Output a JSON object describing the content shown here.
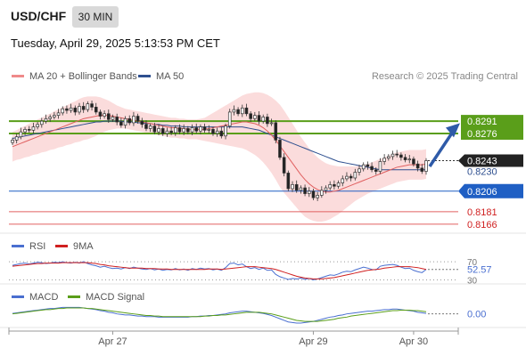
{
  "header": {
    "symbol": "USD/CHF",
    "interval": "30 MIN",
    "datetime": "Tuesday, April 29, 2025 5:13:53 PM CET",
    "research": "Research © 2025 Trading Central"
  },
  "legend": {
    "ma20": "MA 20 + Bollinger Bands",
    "ma50": "MA 50",
    "rsi": "RSI",
    "rsi9": "9MA",
    "macd": "MACD",
    "macd_signal": "MACD Signal"
  },
  "colors": {
    "ma20": "#e06060",
    "band": "#fbdcdc",
    "ma50": "#2e4f8f",
    "resistance": "#5a9e1a",
    "support": "#1f5fc4",
    "support_line": "#e06060",
    "last_price": "#222222",
    "rsi": "#4a6fd0",
    "rsi9": "#d02020",
    "macd": "#4a6fd0",
    "macd_signal": "#5a9e1a"
  },
  "chart_data": [
    {
      "type": "candlestick",
      "ylim": [
        0.8155,
        0.833
      ],
      "price_levels": [
        {
          "label": "0.8291",
          "value": 0.8291,
          "kind": "resistance"
        },
        {
          "label": "0.8276",
          "value": 0.8276,
          "kind": "resistance"
        },
        {
          "label": "0.8243",
          "value": 0.8243,
          "kind": "last"
        },
        {
          "label": "0.8230",
          "value": 0.823,
          "kind": "pivot"
        },
        {
          "label": "0.8206",
          "value": 0.8206,
          "kind": "support"
        },
        {
          "label": "0.8181",
          "value": 0.8181,
          "kind": "support2"
        },
        {
          "label": "0.8166",
          "value": 0.8166,
          "kind": "support2"
        }
      ],
      "closes": [
        0.8268,
        0.8272,
        0.8278,
        0.8281,
        0.828,
        0.8284,
        0.8287,
        0.8291,
        0.8294,
        0.8296,
        0.8298,
        0.8301,
        0.8306,
        0.8304,
        0.8307,
        0.8302,
        0.8309,
        0.8305,
        0.8312,
        0.8308,
        0.8302,
        0.8297,
        0.83,
        0.8293,
        0.8296,
        0.829,
        0.8286,
        0.8294,
        0.8289,
        0.8297,
        0.8291,
        0.8287,
        0.8282,
        0.8285,
        0.8278,
        0.8282,
        0.8276,
        0.8279,
        0.8277,
        0.8283,
        0.8278,
        0.8282,
        0.8278,
        0.8283,
        0.8279,
        0.8284,
        0.828,
        0.8281,
        0.8276,
        0.8279,
        0.8273,
        0.8285,
        0.8302,
        0.8305,
        0.83,
        0.8307,
        0.83,
        0.8294,
        0.8298,
        0.8291,
        0.8296,
        0.8288,
        0.8289,
        0.8268,
        0.8247,
        0.8228,
        0.8209,
        0.8214,
        0.8207,
        0.821,
        0.8203,
        0.8206,
        0.8198,
        0.8201,
        0.8207,
        0.821,
        0.8214,
        0.8212,
        0.8216,
        0.8221,
        0.8224,
        0.8222,
        0.8229,
        0.8233,
        0.8238,
        0.8236,
        0.8232,
        0.823,
        0.8242,
        0.8246,
        0.8248,
        0.8251,
        0.825,
        0.8247,
        0.8244,
        0.8245,
        0.8239,
        0.8234,
        0.823,
        0.8243
      ],
      "ma20": [
        0.826,
        0.8262,
        0.8264,
        0.8266,
        0.8268,
        0.827,
        0.8272,
        0.8274,
        0.8276,
        0.8278,
        0.828,
        0.8282,
        0.8284,
        0.8286,
        0.8288,
        0.829,
        0.8292,
        0.8294,
        0.8295,
        0.8296,
        0.8297,
        0.8298,
        0.8298,
        0.8298,
        0.8297,
        0.8296,
        0.8295,
        0.8294,
        0.8293,
        0.8292,
        0.8291,
        0.829,
        0.8289,
        0.8288,
        0.8287,
        0.8286,
        0.8285,
        0.8284,
        0.8283,
        0.8283,
        0.8282,
        0.8282,
        0.8281,
        0.8281,
        0.8281,
        0.8281,
        0.8281,
        0.8282,
        0.8283,
        0.8284,
        0.8285,
        0.8286,
        0.8287,
        0.8288,
        0.8289,
        0.829,
        0.829,
        0.8289,
        0.8288,
        0.8286,
        0.8283,
        0.8279,
        0.8274,
        0.8268,
        0.8261,
        0.8254,
        0.8247,
        0.824,
        0.8233,
        0.8226,
        0.822,
        0.8215,
        0.8211,
        0.8208,
        0.8206,
        0.8205,
        0.8205,
        0.8206,
        0.8207,
        0.8209,
        0.8211,
        0.8213,
        0.8215,
        0.8217,
        0.8219,
        0.8221,
        0.8223,
        0.8225,
        0.8227,
        0.8229,
        0.8231,
        0.8233,
        0.8235,
        0.8236,
        0.8237,
        0.8238,
        0.8238,
        0.8238,
        0.8238,
        0.8239
      ],
      "ma50": [
        0.827,
        0.8271,
        0.8272,
        0.8273,
        0.8274,
        0.8275,
        0.8276,
        0.8277,
        0.8278,
        0.8279,
        0.828,
        0.8281,
        0.8282,
        0.8283,
        0.8284,
        0.8285,
        0.8286,
        0.8287,
        0.8288,
        0.8289,
        0.829,
        0.829,
        0.8291,
        0.8291,
        0.8291,
        0.8291,
        0.8291,
        0.829,
        0.829,
        0.829,
        0.8289,
        0.8289,
        0.8288,
        0.8288,
        0.8287,
        0.8287,
        0.8286,
        0.8286,
        0.8285,
        0.8285,
        0.8285,
        0.8284,
        0.8284,
        0.8284,
        0.8284,
        0.8284,
        0.8284,
        0.8284,
        0.8284,
        0.8284,
        0.8284,
        0.8284,
        0.8284,
        0.8284,
        0.8284,
        0.8284,
        0.8283,
        0.8282,
        0.8281,
        0.828,
        0.8278,
        0.8276,
        0.8274,
        0.8272,
        0.827,
        0.8268,
        0.8266,
        0.8264,
        0.8262,
        0.826,
        0.8258,
        0.8256,
        0.8254,
        0.8252,
        0.825,
        0.8248,
        0.8246,
        0.8244,
        0.8242,
        0.8241,
        0.824,
        0.8239,
        0.8238,
        0.8237,
        0.8236,
        0.8235,
        0.8234,
        0.8233,
        0.8232,
        0.8232,
        0.8232,
        0.8232,
        0.8232,
        0.8232,
        0.8232,
        0.8232,
        0.8232,
        0.8232,
        0.8232,
        0.8232
      ],
      "band_width": [
        0.0018,
        0.0018,
        0.0019,
        0.0019,
        0.002,
        0.002,
        0.0021,
        0.0021,
        0.0022,
        0.0022,
        0.0023,
        0.0023,
        0.0024,
        0.0024,
        0.0025,
        0.0025,
        0.0026,
        0.0026,
        0.0026,
        0.0025,
        0.0024,
        0.0022,
        0.002,
        0.0018,
        0.0016,
        0.0014,
        0.0013,
        0.0012,
        0.0012,
        0.0012,
        0.0012,
        0.0012,
        0.0012,
        0.0012,
        0.0012,
        0.0012,
        0.0012,
        0.0012,
        0.0012,
        0.0012,
        0.0012,
        0.0012,
        0.0012,
        0.0012,
        0.0012,
        0.0013,
        0.0014,
        0.0016,
        0.0018,
        0.002,
        0.0022,
        0.0024,
        0.0026,
        0.0028,
        0.003,
        0.0032,
        0.0034,
        0.0036,
        0.0038,
        0.004,
        0.0042,
        0.0044,
        0.0046,
        0.0048,
        0.005,
        0.005,
        0.0049,
        0.0048,
        0.0047,
        0.0046,
        0.0045,
        0.0043,
        0.0041,
        0.0039,
        0.0037,
        0.0035,
        0.0033,
        0.0031,
        0.0029,
        0.0027,
        0.0025,
        0.0023,
        0.0021,
        0.002,
        0.0019,
        0.0018,
        0.0018,
        0.0018,
        0.0018,
        0.0018,
        0.0018,
        0.0018,
        0.0018,
        0.0018,
        0.0018,
        0.0018,
        0.0018,
        0.0018,
        0.0018,
        0.0018
      ],
      "projection": {
        "from": 0.8236,
        "to": 0.8282
      }
    },
    {
      "type": "line",
      "name": "RSI",
      "ylim": [
        25,
        78
      ],
      "levels": [
        {
          "label": "70",
          "value": 70
        },
        {
          "label": "30",
          "value": 30
        }
      ],
      "current_label": "52.57",
      "rsi": [
        62,
        64,
        66,
        67,
        65,
        67,
        69,
        68,
        66,
        67,
        69,
        68,
        70,
        68,
        67,
        69,
        67,
        70,
        66,
        63,
        61,
        58,
        60,
        57,
        55,
        56,
        54,
        57,
        55,
        58,
        56,
        54,
        53,
        55,
        52,
        54,
        51,
        53,
        52,
        55,
        52,
        54,
        51,
        55,
        53,
        56,
        54,
        55,
        52,
        54,
        51,
        57,
        66,
        67,
        63,
        65,
        59,
        55,
        57,
        53,
        56,
        51,
        52,
        42,
        37,
        34,
        31,
        33,
        32,
        34,
        31,
        33,
        30,
        32,
        35,
        38,
        41,
        40,
        43,
        47,
        49,
        48,
        52,
        55,
        58,
        56,
        53,
        52,
        60,
        62,
        63,
        64,
        62,
        58,
        55,
        56,
        51,
        48,
        46,
        53
      ],
      "ma9": [
        60,
        61,
        62,
        63,
        64,
        65,
        66,
        66,
        67,
        67,
        67,
        67,
        68,
        68,
        68,
        68,
        68,
        68,
        68,
        67,
        66,
        64,
        63,
        61,
        60,
        59,
        58,
        57,
        56,
        56,
        56,
        56,
        55,
        55,
        55,
        54,
        54,
        54,
        53,
        53,
        53,
        53,
        53,
        53,
        53,
        53,
        53,
        54,
        54,
        54,
        53,
        54,
        55,
        56,
        57,
        58,
        59,
        59,
        59,
        58,
        57,
        56,
        55,
        53,
        50,
        47,
        44,
        41,
        38,
        36,
        34,
        33,
        32,
        32,
        32,
        33,
        34,
        35,
        37,
        39,
        41,
        43,
        45,
        47,
        49,
        51,
        52,
        53,
        54,
        56,
        57,
        58,
        59,
        59,
        59,
        59,
        58,
        57,
        55,
        53
      ]
    },
    {
      "type": "line",
      "name": "MACD",
      "ylim": [
        -0.0022,
        0.0016
      ],
      "zero_label": "0.00",
      "macd": [
        0.0001,
        0.0002,
        0.0003,
        0.0004,
        0.0005,
        0.0006,
        0.0007,
        0.0008,
        0.0009,
        0.001,
        0.001,
        0.0011,
        0.0012,
        0.0012,
        0.0012,
        0.0012,
        0.0012,
        0.0011,
        0.001,
        0.0009,
        0.0008,
        0.0006,
        0.0005,
        0.0003,
        0.0002,
        0.0,
        -0.0001,
        -0.0002,
        -0.0002,
        -0.0003,
        -0.0004,
        -0.0004,
        -0.0005,
        -0.0005,
        -0.0005,
        -0.0006,
        -0.0006,
        -0.0006,
        -0.0006,
        -0.0006,
        -0.0006,
        -0.0006,
        -0.0006,
        -0.0005,
        -0.0005,
        -0.0004,
        -0.0004,
        -0.0003,
        -0.0003,
        -0.0002,
        -0.0001,
        0.0,
        0.0002,
        0.0003,
        0.0004,
        0.0005,
        0.0005,
        0.0004,
        0.0003,
        0.0002,
        0.0001,
        -0.0001,
        -0.0003,
        -0.0006,
        -0.0009,
        -0.0012,
        -0.0015,
        -0.0016,
        -0.0017,
        -0.0017,
        -0.0016,
        -0.0015,
        -0.0014,
        -0.0012,
        -0.001,
        -0.0008,
        -0.0006,
        -0.0005,
        -0.0003,
        -0.0002,
        0.0,
        0.0001,
        0.0002,
        0.0003,
        0.0004,
        0.0005,
        0.0005,
        0.0006,
        0.0007,
        0.0008,
        0.0008,
        0.0009,
        0.0009,
        0.0008,
        0.0007,
        0.0006,
        0.0005,
        0.0003,
        0.0002,
        0.0001
      ],
      "signal": [
        0.0,
        0.0001,
        0.0002,
        0.0003,
        0.0004,
        0.0005,
        0.0006,
        0.0007,
        0.0008,
        0.0008,
        0.0009,
        0.001,
        0.001,
        0.0011,
        0.0011,
        0.0011,
        0.0011,
        0.0011,
        0.001,
        0.001,
        0.0009,
        0.0008,
        0.0007,
        0.0006,
        0.0005,
        0.0004,
        0.0003,
        0.0002,
        0.0001,
        0.0,
        -0.0001,
        -0.0002,
        -0.0003,
        -0.0003,
        -0.0004,
        -0.0004,
        -0.0005,
        -0.0005,
        -0.0005,
        -0.0005,
        -0.0005,
        -0.0005,
        -0.0005,
        -0.0005,
        -0.0005,
        -0.0005,
        -0.0004,
        -0.0004,
        -0.0003,
        -0.0003,
        -0.0002,
        -0.0002,
        -0.0001,
        0.0,
        0.0001,
        0.0002,
        0.0003,
        0.0003,
        0.0003,
        0.0003,
        0.0002,
        0.0001,
        0.0,
        -0.0002,
        -0.0004,
        -0.0006,
        -0.0008,
        -0.001,
        -0.0012,
        -0.0013,
        -0.0014,
        -0.0014,
        -0.0014,
        -0.0014,
        -0.0013,
        -0.0012,
        -0.0011,
        -0.001,
        -0.0008,
        -0.0007,
        -0.0006,
        -0.0004,
        -0.0003,
        -0.0002,
        -0.0001,
        0.0,
        0.0001,
        0.0002,
        0.0003,
        0.0004,
        0.0005,
        0.0006,
        0.0006,
        0.0007,
        0.0007,
        0.0007,
        0.0006,
        0.0006,
        0.0005,
        0.0004
      ]
    }
  ],
  "x_axis": {
    "labels": [
      {
        "text": "Apr 27",
        "index": 24
      },
      {
        "text": "Apr 29",
        "index": 72
      },
      {
        "text": "Apr 30",
        "index": 96
      }
    ]
  }
}
